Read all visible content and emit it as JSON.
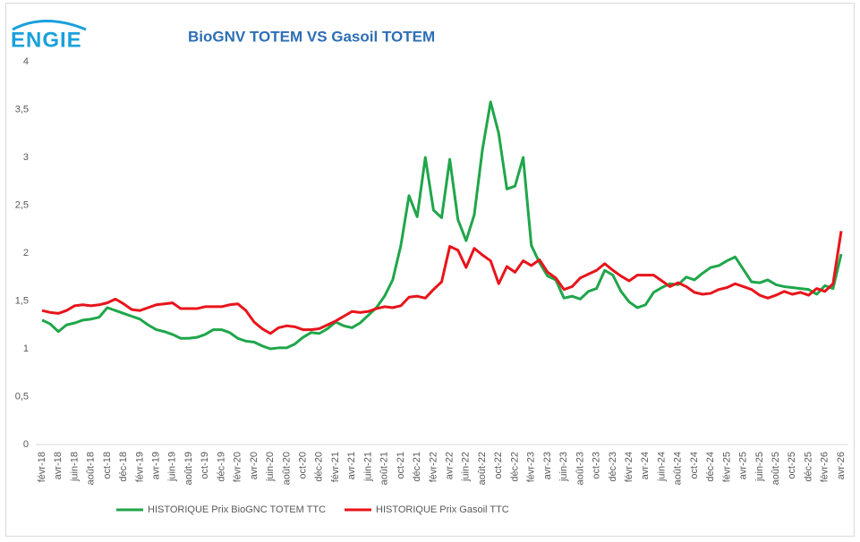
{
  "chart_data": {
    "type": "line",
    "logo": "ENGIE",
    "title": "BioGNV TOTEM VS Gasoil TOTEM",
    "categories": [
      "févr-18",
      null,
      "avr-18",
      null,
      "juin-18",
      null,
      "août-18",
      null,
      "oct-18",
      null,
      "déc-18",
      null,
      "févr-19",
      null,
      "avr-19",
      null,
      "juin-19",
      null,
      "août-19",
      null,
      "oct-19",
      null,
      "déc-19",
      null,
      "févr-20",
      null,
      "avr-20",
      null,
      "juin-20",
      null,
      "août-20",
      null,
      "oct-20",
      null,
      "déc-20",
      null,
      "févr-21",
      null,
      "avr-21",
      null,
      "juin-21",
      null,
      "août-21",
      null,
      "oct-21",
      null,
      "déc-21",
      null,
      "févr-22",
      null,
      "avr-22",
      null,
      "juin-22",
      null,
      "août-22",
      null,
      "oct-22",
      null,
      "déc-22",
      null,
      "févr-23",
      null,
      "avr-23",
      null,
      "juin-23",
      null,
      "août-23",
      null,
      "oct-23",
      null,
      "déc-23",
      null,
      "févr-24",
      null,
      "avr-24",
      null,
      "juin-24",
      null,
      "août-24",
      null,
      "oct-24",
      null,
      "déc-24",
      null,
      "févr-25",
      null,
      "avr-25",
      null,
      "juin-25",
      null,
      "août-25",
      null,
      "oct-25",
      null,
      "déc-25",
      null,
      "févr-26",
      null,
      "avr-26"
    ],
    "series": [
      {
        "name": "HISTORIQUE Prix BioGNC TOTEM TTC",
        "color": "#1fa64a",
        "values": [
          1.3,
          1.26,
          1.18,
          1.25,
          1.27,
          1.3,
          1.31,
          1.33,
          1.43,
          1.4,
          1.37,
          1.34,
          1.31,
          1.25,
          1.2,
          1.18,
          1.15,
          1.11,
          1.11,
          1.12,
          1.15,
          1.2,
          1.2,
          1.17,
          1.11,
          1.08,
          1.07,
          1.03,
          1.0,
          1.01,
          1.01,
          1.05,
          1.12,
          1.17,
          1.16,
          1.21,
          1.28,
          1.24,
          1.22,
          1.27,
          1.35,
          1.43,
          1.55,
          1.72,
          2.08,
          2.6,
          2.38,
          3.0,
          2.45,
          2.37,
          2.98,
          2.35,
          2.13,
          2.4,
          3.08,
          3.58,
          3.25,
          2.67,
          2.7,
          3.0,
          2.08,
          1.9,
          1.76,
          1.72,
          1.53,
          1.55,
          1.52,
          1.6,
          1.63,
          1.82,
          1.77,
          1.6,
          1.49,
          1.43,
          1.46,
          1.59,
          1.64,
          1.68,
          1.67,
          1.75,
          1.72,
          1.79,
          1.85,
          1.87,
          1.92,
          1.96,
          1.83,
          1.7,
          1.69,
          1.72,
          1.67,
          1.65,
          1.64,
          1.63,
          1.62,
          1.57,
          1.66,
          1.63,
          1.99
        ]
      },
      {
        "name": "HISTORIQUE Prix Gasoil TTC",
        "color": "#e8141b",
        "values": [
          1.4,
          1.38,
          1.37,
          1.4,
          1.45,
          1.46,
          1.45,
          1.46,
          1.48,
          1.52,
          1.47,
          1.41,
          1.4,
          1.43,
          1.46,
          1.47,
          1.48,
          1.42,
          1.42,
          1.42,
          1.44,
          1.44,
          1.44,
          1.46,
          1.47,
          1.4,
          1.28,
          1.21,
          1.16,
          1.22,
          1.24,
          1.23,
          1.2,
          1.2,
          1.21,
          1.25,
          1.29,
          1.34,
          1.39,
          1.38,
          1.39,
          1.42,
          1.44,
          1.43,
          1.45,
          1.54,
          1.55,
          1.53,
          1.62,
          1.7,
          2.07,
          2.03,
          1.85,
          2.05,
          1.98,
          1.92,
          1.68,
          1.86,
          1.8,
          1.92,
          1.87,
          1.93,
          1.8,
          1.74,
          1.62,
          1.65,
          1.74,
          1.78,
          1.82,
          1.89,
          1.82,
          1.76,
          1.71,
          1.77,
          1.77,
          1.77,
          1.71,
          1.65,
          1.69,
          1.65,
          1.59,
          1.57,
          1.58,
          1.62,
          1.64,
          1.68,
          1.65,
          1.62,
          1.56,
          1.53,
          1.56,
          1.6,
          1.57,
          1.59,
          1.56,
          1.63,
          1.6,
          1.68,
          2.23
        ]
      }
    ],
    "ylim": [
      0,
      4
    ],
    "yticks": [
      0,
      {
        "value": 0.5,
        "label": "0,5"
      },
      1,
      {
        "value": 1.5,
        "label": "1,5"
      },
      2,
      {
        "value": 2.5,
        "label": "2,5"
      },
      3,
      {
        "value": 3.5,
        "label": "3,5"
      },
      4
    ],
    "grid": false
  }
}
